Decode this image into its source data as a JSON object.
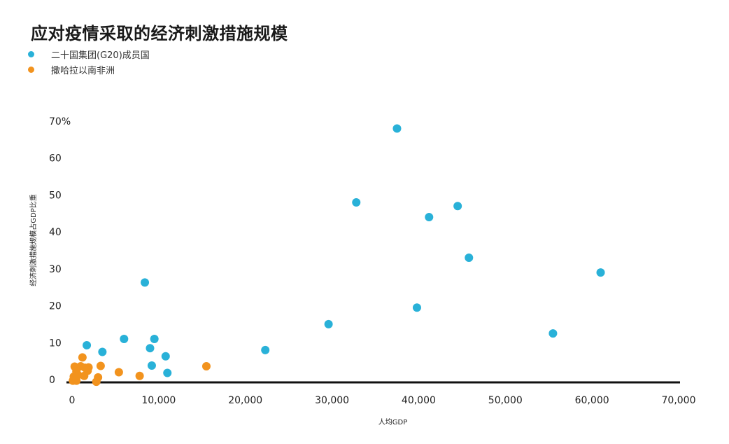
{
  "chart_data": {
    "type": "scatter",
    "title": "应对疫情采取的经济刺激措施规模",
    "xlabel": "人均GDP",
    "ylabel": "经济刺激措施规模占GDP比重",
    "xlim": [
      0,
      70000
    ],
    "ylim": [
      0,
      70
    ],
    "x_ticks": [
      {
        "value": 0,
        "label": "0"
      },
      {
        "value": 10000,
        "label": "10,000"
      },
      {
        "value": 20000,
        "label": "20,000"
      },
      {
        "value": 30000,
        "label": "30,000"
      },
      {
        "value": 40000,
        "label": "40,000"
      },
      {
        "value": 50000,
        "label": "50,000"
      },
      {
        "value": 60000,
        "label": "60,000"
      },
      {
        "value": 70000,
        "label": "70,000"
      }
    ],
    "y_ticks": [
      {
        "value": 0,
        "label": "0"
      },
      {
        "value": 10,
        "label": "10"
      },
      {
        "value": 20,
        "label": "20"
      },
      {
        "value": 30,
        "label": "30"
      },
      {
        "value": 40,
        "label": "40"
      },
      {
        "value": 50,
        "label": "50"
      },
      {
        "value": 60,
        "label": "60"
      },
      {
        "value": 70,
        "label": "70%"
      }
    ],
    "grid": false,
    "legend_position": "top-left",
    "series": [
      {
        "name": "二十国集团(G20)成员国",
        "color": "#29b1d8",
        "points": [
          {
            "x": 37500,
            "y": 68
          },
          {
            "x": 32800,
            "y": 48
          },
          {
            "x": 44500,
            "y": 47
          },
          {
            "x": 41200,
            "y": 44
          },
          {
            "x": 45800,
            "y": 33
          },
          {
            "x": 61000,
            "y": 29
          },
          {
            "x": 8400,
            "y": 26.3
          },
          {
            "x": 39800,
            "y": 19.5
          },
          {
            "x": 29600,
            "y": 15
          },
          {
            "x": 55500,
            "y": 12.5
          },
          {
            "x": 6000,
            "y": 11
          },
          {
            "x": 9500,
            "y": 11
          },
          {
            "x": 1700,
            "y": 9.3
          },
          {
            "x": 3500,
            "y": 7.5
          },
          {
            "x": 9000,
            "y": 8.5
          },
          {
            "x": 22300,
            "y": 8
          },
          {
            "x": 10800,
            "y": 6.3
          },
          {
            "x": 9200,
            "y": 3.8
          },
          {
            "x": 11000,
            "y": 1.8
          }
        ]
      },
      {
        "name": "撒哈拉以南非洲",
        "color": "#f2931e",
        "points": [
          {
            "x": 1200,
            "y": 6
          },
          {
            "x": 300,
            "y": 3.5
          },
          {
            "x": 1000,
            "y": 3.6
          },
          {
            "x": 1500,
            "y": 3.2
          },
          {
            "x": 1900,
            "y": 3.3
          },
          {
            "x": 3300,
            "y": 3.7
          },
          {
            "x": 15500,
            "y": 3.6
          },
          {
            "x": 500,
            "y": 2.2
          },
          {
            "x": 1800,
            "y": 2.4
          },
          {
            "x": 5400,
            "y": 2
          },
          {
            "x": 7800,
            "y": 1
          },
          {
            "x": 200,
            "y": 0.8
          },
          {
            "x": 700,
            "y": 1.2
          },
          {
            "x": 1400,
            "y": 1.0
          },
          {
            "x": 3000,
            "y": 0.6
          },
          {
            "x": 100,
            "y": -0.3
          },
          {
            "x": 500,
            "y": -0.3
          },
          {
            "x": 2800,
            "y": -0.6
          }
        ]
      }
    ]
  }
}
